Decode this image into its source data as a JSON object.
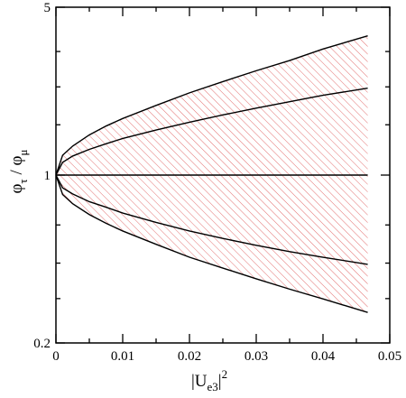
{
  "chart_data": {
    "type": "area",
    "title": "",
    "xlabel": {
      "open": "|U",
      "sub": "e3",
      "close": "|",
      "sup": "2"
    },
    "ylabel": {
      "phi1": "φ",
      "sub1": "τ",
      "slash": " / ",
      "phi2": "φ",
      "sub2": "μ"
    },
    "xlim": [
      0,
      0.05
    ],
    "ylim": [
      0.2,
      5
    ],
    "yscale": "log",
    "x_ticks": [
      0,
      0.01,
      0.02,
      0.03,
      0.04,
      0.05
    ],
    "x_tick_labels": [
      "0",
      "0.01",
      "0.02",
      "0.03",
      "0.04",
      "0.05"
    ],
    "x_minor_ticks": [
      0.005,
      0.015,
      0.025,
      0.035,
      0.045
    ],
    "y_ticks_labeled": [
      0.2,
      1,
      5
    ],
    "y_tick_labels": [
      "0.2",
      "1",
      "5"
    ],
    "y_minor_ticks": [
      0.306,
      0.43,
      0.62,
      1.62,
      2.33,
      3.27
    ],
    "grid": false,
    "fill": {
      "color": "#e06060",
      "pattern": "diagonal-hatch",
      "x_end": 0.0467
    },
    "series": [
      {
        "x": [
          0,
          0.001,
          0.0025,
          0.005,
          0.0075,
          0.01,
          0.015,
          0.02,
          0.025,
          0.03,
          0.035,
          0.04,
          0.0467
        ],
        "values": [
          1,
          1.21,
          1.32,
          1.47,
          1.6,
          1.72,
          1.95,
          2.2,
          2.45,
          2.72,
          3.0,
          3.35,
          3.8
        ]
      },
      {
        "x": [
          0,
          0.001,
          0.0025,
          0.005,
          0.0075,
          0.01,
          0.015,
          0.02,
          0.025,
          0.03,
          0.035,
          0.04,
          0.0467
        ],
        "values": [
          1,
          1.13,
          1.2,
          1.28,
          1.35,
          1.42,
          1.54,
          1.66,
          1.78,
          1.9,
          2.02,
          2.15,
          2.3
        ]
      },
      {
        "x": [
          0,
          0.0467
        ],
        "values": [
          1,
          1
        ]
      },
      {
        "x": [
          0,
          0.001,
          0.0025,
          0.005,
          0.0075,
          0.01,
          0.015,
          0.02,
          0.025,
          0.03,
          0.035,
          0.04,
          0.0467
        ],
        "values": [
          1,
          0.885,
          0.835,
          0.775,
          0.735,
          0.695,
          0.635,
          0.585,
          0.545,
          0.51,
          0.48,
          0.455,
          0.425
        ]
      },
      {
        "x": [
          0,
          0.001,
          0.0025,
          0.005,
          0.0075,
          0.01,
          0.015,
          0.02,
          0.025,
          0.03,
          0.035,
          0.04,
          0.0467
        ],
        "values": [
          1,
          0.83,
          0.76,
          0.685,
          0.63,
          0.585,
          0.515,
          0.455,
          0.41,
          0.37,
          0.335,
          0.305,
          0.268
        ]
      }
    ]
  }
}
